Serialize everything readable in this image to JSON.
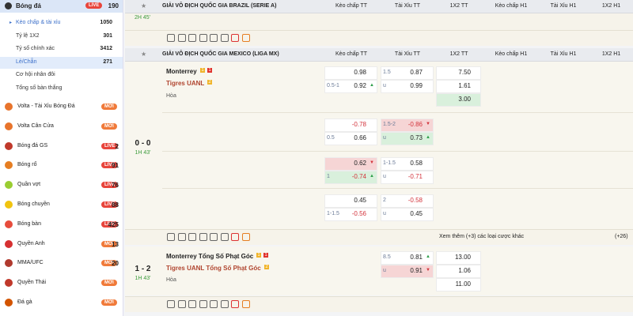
{
  "sidebar": {
    "sport": {
      "label": "Bóng đá",
      "badge": "LIVE",
      "count": 190
    },
    "submenu": [
      {
        "label": "Kèo chấp & tài xỉu",
        "count": 1050
      },
      {
        "label": "Tỷ lệ 1X2",
        "count": 301
      },
      {
        "label": "Tỷ số chính xác",
        "count": 3412
      },
      {
        "label": "Lẻ/Chẵn",
        "count": 271
      },
      {
        "label": "Cơ hội nhân đôi"
      },
      {
        "label": "Tổng số bàn thắng"
      }
    ],
    "sports": [
      {
        "label": "Volta - Tài Xỉu Bóng Đá",
        "badge": "MỚI",
        "color": "#e8742c"
      },
      {
        "label": "Volta Cân Cửa",
        "badge": "MỚI",
        "color": "#e8742c"
      },
      {
        "label": "Bóng đá GS",
        "badge": "LIVE",
        "count": 2,
        "color": "#c0392b"
      },
      {
        "label": "Bóng rổ",
        "badge": "LIVE",
        "count": 91,
        "color": "#e67e22"
      },
      {
        "label": "Quần vợt",
        "badge": "LIVE",
        "count": 76,
        "color": "#9acd32"
      },
      {
        "label": "Bóng chuyền",
        "badge": "LIVE",
        "count": 88,
        "color": "#f1c40f"
      },
      {
        "label": "Bóng bàn",
        "badge": "LIVE",
        "count": 425,
        "color": "#e74c3c"
      },
      {
        "label": "Quyền Anh",
        "badge": "MỚI",
        "count": 13,
        "color": "#d63031"
      },
      {
        "label": "MMA/UFC",
        "badge": "MỚI",
        "count": 20,
        "color": "#b03a2e"
      },
      {
        "label": "Quyền Thái",
        "badge": "MỚI",
        "color": "#c0392b"
      },
      {
        "label": "Đá gà",
        "badge": "MỚI",
        "color": "#d35400"
      }
    ]
  },
  "leagues": [
    {
      "name": "GIẢI VÔ ĐỊCH QUỐC GIA BRAZIL (SERIE A)",
      "columns": [
        "Kèo chấp TT",
        "Tài Xỉu TT",
        "1X2 TT",
        "Kèo chấp H1",
        "Tài Xỉu H1",
        "1X2 H1"
      ],
      "time": "2H 45'"
    },
    {
      "name": "GIẢI VÔ ĐỊCH QUỐC GIA MEXICO (LIGA MX)",
      "columns": [
        "Kèo chấp TT",
        "Tài Xỉu TT",
        "1X2 TT",
        "Kèo chấp H1",
        "Tài Xỉu H1",
        "1X2 H1"
      ],
      "matches": [
        {
          "score": "0 - 0",
          "time": "1H 43'",
          "teams": [
            {
              "name": "Monterrey",
              "cards": [
                "1",
                "1"
              ]
            },
            {
              "name": "Tigres UANL",
              "cards": [
                "2"
              ]
            }
          ],
          "draw": "Hòa",
          "rows": [
            {
              "hc": [
                {
                  "odds": "0.98"
                },
                {
                  "line": "0.5-1",
                  "odds": "0.92",
                  "trend": "up"
                }
              ],
              "ou": [
                {
                  "line": "1.5",
                  "odds": "0.87"
                },
                {
                  "line": "u",
                  "odds": "0.99"
                }
              ],
              "x12": [
                {
                  "odds": "7.50"
                },
                {
                  "odds": "1.61"
                },
                {
                  "odds": "3.00",
                  "trend": "up",
                  "hl": true
                }
              ]
            },
            {
              "hc": [
                {
                  "odds": "-0.78"
                },
                {
                  "line": "0.5",
                  "odds": "0.66"
                }
              ],
              "ou": [
                {
                  "line": "1.5-2",
                  "odds": "-0.86",
                  "trend": "down",
                  "hl": true
                },
                {
                  "line": "u",
                  "odds": "0.73",
                  "trend": "up",
                  "hl": true
                }
              ]
            },
            {
              "hc": [
                {
                  "odds": "0.62",
                  "trend": "down",
                  "hl": true
                },
                {
                  "line": "1",
                  "odds": "-0.74",
                  "trend": "up",
                  "hl": true
                }
              ],
              "ou": [
                {
                  "line": "1-1.5",
                  "odds": "0.58"
                },
                {
                  "line": "u",
                  "odds": "-0.71"
                }
              ]
            },
            {
              "hc": [
                {
                  "odds": "0.45"
                },
                {
                  "line": "1-1.5",
                  "odds": "-0.56"
                }
              ],
              "ou": [
                {
                  "line": "2",
                  "odds": "-0.58"
                },
                {
                  "line": "u",
                  "odds": "0.45"
                }
              ]
            }
          ],
          "more": "Xem thêm (+3) các loại cược khác",
          "extra": "(+26)"
        },
        {
          "score": "1 - 2",
          "time": "1H 43'",
          "teams": [
            {
              "name": "Monterrey Tổng Số Phạt Góc",
              "cards": [
                "1",
                "1"
              ]
            },
            {
              "name": "Tigres UANL Tổng Số Phạt Góc",
              "cards": [
                "2"
              ]
            }
          ],
          "draw": "Hòa",
          "rows": [
            {
              "ou": [
                {
                  "line": "8.5",
                  "odds": "0.81",
                  "trend": "up"
                },
                {
                  "line": "u",
                  "odds": "0.91",
                  "trend": "down",
                  "hl": true
                }
              ],
              "x12": [
                {
                  "odds": "13.00"
                },
                {
                  "odds": "1.06"
                },
                {
                  "odds": "11.00"
                }
              ]
            }
          ]
        }
      ]
    }
  ]
}
